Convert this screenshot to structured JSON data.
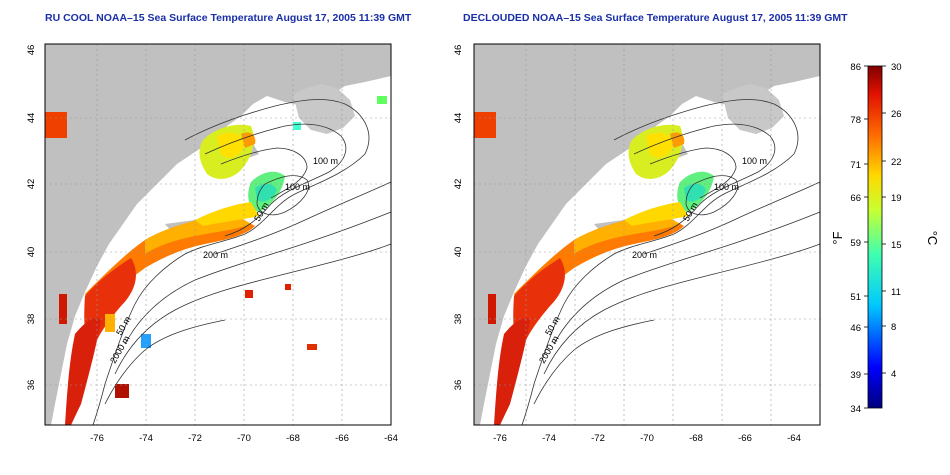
{
  "panels": [
    {
      "title": "RU COOL NOAA–15 Sea Surface Temperature August 17, 2005 11:39 GMT",
      "x_ticks": [
        "-76",
        "-74",
        "-72",
        "-70",
        "-68",
        "-66",
        "-64"
      ],
      "y_ticks": [
        "36",
        "38",
        "40",
        "42",
        "44",
        "46"
      ],
      "contour_labels": [
        "100 m",
        "100 m",
        "50 m",
        "200 m",
        "50 m",
        "2000 m"
      ]
    },
    {
      "title": "DECLOUDED NOAA–15 Sea Surface Temperature August 17, 2005 11:39 GMT",
      "x_ticks": [
        "-76",
        "-74",
        "-72",
        "-70",
        "-68",
        "-66",
        "-64"
      ],
      "y_ticks": [
        "36",
        "38",
        "40",
        "42",
        "44",
        "46"
      ],
      "contour_labels": [
        "100 m",
        "100 m",
        "50 m",
        "200 m",
        "50 m",
        "2000 m"
      ]
    }
  ],
  "colorbar": {
    "fahrenheit_label": "°F",
    "celsius_label": "°C",
    "fahrenheit_ticks": [
      "86",
      "78",
      "71",
      "66",
      "59",
      "51",
      "46",
      "39",
      "34"
    ],
    "celsius_ticks": [
      "30",
      "26",
      "22",
      "19",
      "15",
      "11",
      "8",
      "4"
    ]
  },
  "colors": {
    "land": "#c0c0c0",
    "title": "#1a2fa8",
    "grid": "#9a9a9a"
  }
}
